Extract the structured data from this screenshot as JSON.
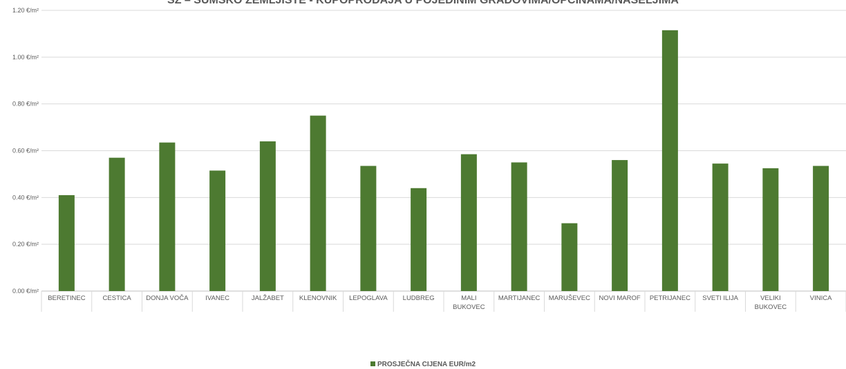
{
  "chart_data": {
    "type": "bar",
    "title": "SZ – ŠUMSKO ZEMLJIŠTE - KUPOPRODAJA U POJEDINIM GRADOVIMA/OPĆINAMA/NASELJIMA",
    "categories": [
      "BERETINEC",
      "CESTICA",
      "DONJA VOČA",
      "IVANEC",
      "JALŽABET",
      "KLENOVNIK",
      "LEPOGLAVA",
      "LUDBREG",
      "MALI BUKOVEC",
      "MARTIJANEC",
      "MARUŠEVEC",
      "NOVI MAROF",
      "PETRIJANEC",
      "SVETI ILIJA",
      "VELIKI BUKOVEC",
      "VINICA"
    ],
    "series": [
      {
        "name": "PROSJEČNA CIJENA EUR/m2",
        "values": [
          0.41,
          0.57,
          0.635,
          0.515,
          0.64,
          0.75,
          0.535,
          0.44,
          0.585,
          0.55,
          0.29,
          0.56,
          1.115,
          0.545,
          0.525,
          0.535
        ]
      }
    ],
    "ylim": [
      0,
      1.2
    ],
    "yticks": [
      0,
      0.2,
      0.4,
      0.6,
      0.8,
      1.0,
      1.2
    ],
    "ytick_labels": [
      "0.00 €/m²",
      "0.20 €/m²",
      "0.40 €/m²",
      "0.60 €/m²",
      "0.80 €/m²",
      "1.00 €/m²",
      "1.20 €/m²"
    ],
    "xlabel": "",
    "ylabel": "",
    "grid": true,
    "legend_position": "bottom",
    "colors": {
      "bar": "#4d7a31",
      "grid": "#d9d9d9",
      "axis": "#bfbfbf",
      "text": "#595959"
    }
  }
}
